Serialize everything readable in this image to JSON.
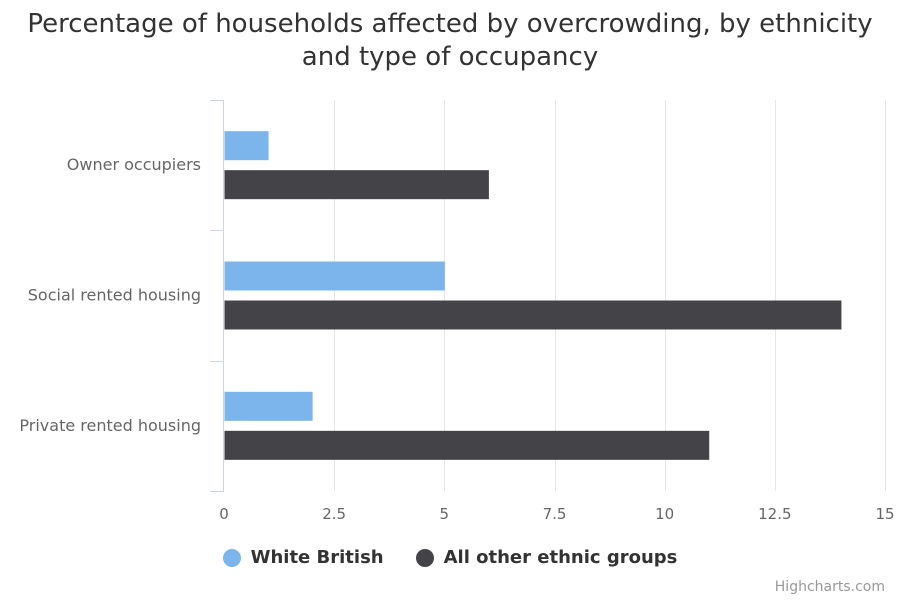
{
  "chart_data": {
    "type": "bar",
    "orientation": "horizontal",
    "title": "Percentage of households affected by overcrowding, by ethnicity and type of occupancy",
    "categories": [
      "Owner occupiers",
      "Social rented housing",
      "Private rented housing"
    ],
    "series": [
      {
        "name": "White British",
        "values": [
          1,
          5,
          2
        ],
        "color": "#7cb5ec"
      },
      {
        "name": "All other ethnic groups",
        "values": [
          6,
          14,
          11
        ],
        "color": "#434348"
      }
    ],
    "xlim": [
      0,
      15
    ],
    "ticks": [
      "0",
      "2.5",
      "5",
      "7.5",
      "10",
      "12.5",
      "15"
    ],
    "grid": true,
    "legend_position": "bottom-center"
  },
  "credits": "Highcharts.com"
}
